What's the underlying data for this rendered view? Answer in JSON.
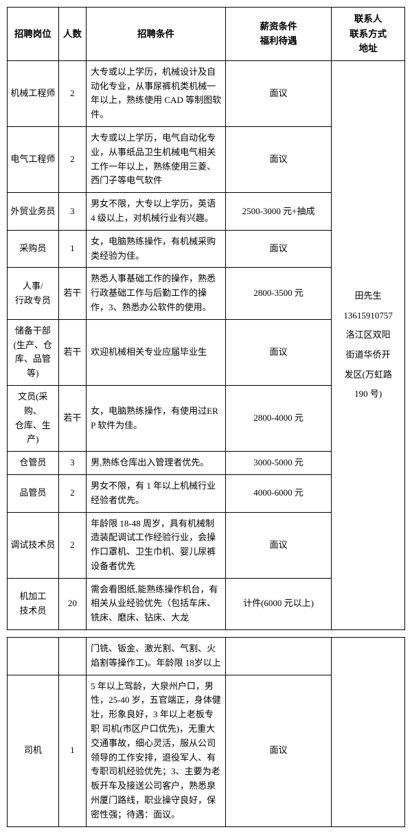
{
  "headers": {
    "position": "招聘岗位",
    "count": "人数",
    "requirements": "招聘条件",
    "salary": "薪资条件\n福利待遇",
    "contact": "联系人\n联系方式\n地址"
  },
  "contact_info": "田先生\n13615910757\n洛江区双阳\n街道华侨开\n发区(万虹路\n190 号)",
  "rows1": [
    {
      "pos": "机械工程师",
      "num": "2",
      "req": "大专或以上学历，机械设计及自动化专业，从事尿裤机类机械一年以上，熟练使用 CAD 等制图软件。",
      "sal": "面议"
    },
    {
      "pos": "电气工程师",
      "num": "2",
      "req": "大专或以上学历，电气自动化专业，从事纸品卫生机械电气相关工作一年以上，熟练使用三菱、西门子等电气软件",
      "sal": "面议"
    },
    {
      "pos": "外贸业务员",
      "num": "3",
      "req": "男女不限，大专以上学历，英语 4 级以上，对机械行业有兴趣。",
      "sal": "2500-3000 元+抽成"
    },
    {
      "pos": "采购员",
      "num": "1",
      "req": "女，电脑熟练操作，有机械采购类经验为佳。",
      "sal": "面议"
    },
    {
      "pos": "人事/\n行政专员",
      "num": "若干",
      "req": "熟悉人事基础工作的操作，熟悉行政基础工作与后勤工作的操作，3、熟悉办公软件的使用。",
      "sal": "2800-3500 元"
    },
    {
      "pos": "储备干部\n(生产、仓\n库、品管等)",
      "num": "若干",
      "req": "欢迎机械相关专业应届毕业生",
      "sal": "面议"
    },
    {
      "pos": "文员(采购、\n仓库、生产)",
      "num": "若干",
      "req": "女，电脑熟练操作，有使用过ERP 软件为佳。",
      "sal": "2800-4000 元"
    },
    {
      "pos": "仓管员",
      "num": "3",
      "req": "男,熟练仓库出入管理者优先。",
      "sal": "3000-5000 元"
    },
    {
      "pos": "品管员",
      "num": "2",
      "req": "男女不限，有 1 年以上机械行业经验者优先。",
      "sal": "4000-6000 元"
    },
    {
      "pos": "调试技术员",
      "num": "2",
      "req": "年龄限 18-48 周岁，具有机械制造装配调试工作经验行业，会操作口罩机、卫生巾机、婴儿尿裤设备者优先",
      "sal": "面议"
    },
    {
      "pos": "机加工\n技术员",
      "num": "20",
      "req": "需会看图纸,能熟练操作机台，有相关从业经验优先（包括车床、铣床、磨床、钻床、大龙",
      "sal": "计件(6000 元以上)"
    }
  ],
  "rows2": [
    {
      "pos": "",
      "num": "",
      "req": "门铣、钣金、激光割、气割、火焰割等操作工)。年龄限 18岁以上",
      "sal": ""
    },
    {
      "pos": "司机",
      "num": "1",
      "req": "5 年以上驾龄，大泉州户口，男性，25-40 岁，五官端正，身体健壮，形象良好，3 年以上老板专职 司机(市区户口优先)，无重大交通事故，细心灵活，服从公司领导的工作安排，退役军人、有专职司机经验优先；3、主要为老板开车及接送公司客户，熟悉泉州厦门路线，职业操守良好，保密性强；待遇：面议。",
      "sal": "面议"
    }
  ]
}
